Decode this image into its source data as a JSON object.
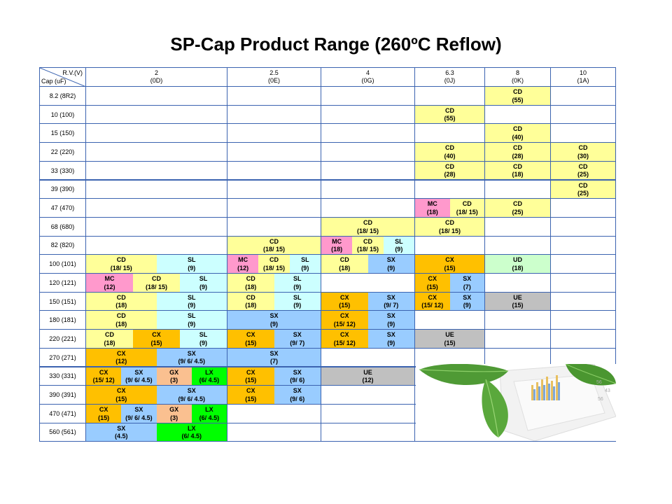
{
  "title": "SP-Cap Product Range (260ºC Reflow)",
  "corner": {
    "rv": "R.V.(V)",
    "cap": "Cap (uF)"
  },
  "voltages": [
    {
      "v": "2",
      "code": "(0D)"
    },
    {
      "v": "2.5",
      "code": "(0E)"
    },
    {
      "v": "4",
      "code": "(0G)"
    },
    {
      "v": "6.3",
      "code": "(0J)"
    },
    {
      "v": "8",
      "code": "(0K)"
    },
    {
      "v": "10",
      "code": "(1A)"
    }
  ],
  "rows": [
    "8.2 (8R2)",
    "10 (100)",
    "15 (150)",
    "22 (220)",
    "33 (330)",
    "39 (390)",
    "47 (470)",
    "68 (680)",
    "82 (820)",
    "100 (101)",
    "120 (121)",
    "150 (151)",
    "180 (181)",
    "220 (221)",
    "270 (271)",
    "330 (331)",
    "390 (391)",
    "470 (471)",
    "560 (561)"
  ],
  "colors": {
    "CD": "#ffff99",
    "SL": "#ccffff",
    "MC": "#ff99cc",
    "CX": "#ffc000",
    "SX": "#99ccff",
    "GX": "#fac090",
    "LX": "#00ff00",
    "UD": "#ccffcc",
    "UE": "#c0c0c0",
    "border": "#3b63b0"
  },
  "cells": [
    [
      [],
      [],
      [],
      [],
      [
        {
          "s": "CD",
          "v": "(55)"
        }
      ],
      []
    ],
    [
      [],
      [],
      [],
      [
        {
          "s": "CD",
          "v": "(55)"
        }
      ],
      [],
      []
    ],
    [
      [],
      [],
      [],
      [],
      [
        {
          "s": "CD",
          "v": "(40)"
        }
      ],
      []
    ],
    [
      [],
      [],
      [],
      [
        {
          "s": "CD",
          "v": "(40)"
        }
      ],
      [
        {
          "s": "CD",
          "v": "(28)"
        }
      ],
      [
        {
          "s": "CD",
          "v": "(30)"
        }
      ]
    ],
    [
      [],
      [],
      [],
      [
        {
          "s": "CD",
          "v": "(28)"
        }
      ],
      [
        {
          "s": "CD",
          "v": "(18)"
        }
      ],
      [
        {
          "s": "CD",
          "v": "(25)"
        }
      ]
    ],
    [
      [],
      [],
      [],
      [],
      [],
      [
        {
          "s": "CD",
          "v": "(25)"
        }
      ]
    ],
    [
      [],
      [],
      [],
      [
        {
          "s": "MC",
          "v": "(18)"
        },
        {
          "s": "CD",
          "v": "(18/ 15)"
        }
      ],
      [
        {
          "s": "CD",
          "v": "(25)"
        }
      ],
      []
    ],
    [
      [],
      [],
      [
        {
          "s": "CD",
          "v": "(18/ 15)"
        }
      ],
      [
        {
          "s": "CD",
          "v": "(18/ 15)"
        }
      ],
      [],
      []
    ],
    [
      [],
      [
        {
          "s": "CD",
          "v": "(18/ 15)"
        }
      ],
      [
        {
          "s": "MC",
          "v": "(18)"
        },
        {
          "s": "CD",
          "v": "(18/ 15)"
        },
        {
          "s": "SL",
          "v": "(9)"
        }
      ],
      [],
      [],
      []
    ],
    [
      [
        {
          "s": "CD",
          "v": "(18/ 15)"
        },
        {
          "s": "SL",
          "v": "(9)"
        }
      ],
      [
        {
          "s": "MC",
          "v": "(12)"
        },
        {
          "s": "CD",
          "v": "(18/ 15)"
        },
        {
          "s": "SL",
          "v": "(9)"
        }
      ],
      [
        {
          "s": "CD",
          "v": "(18)"
        },
        {
          "s": "SX",
          "v": "(9)"
        }
      ],
      [
        {
          "s": "CX",
          "v": "(15)"
        }
      ],
      [
        {
          "s": "UD",
          "v": "(18)"
        }
      ],
      []
    ],
    [
      [
        {
          "s": "MC",
          "v": "(12)"
        },
        {
          "s": "CD",
          "v": "(18/ 15)"
        },
        {
          "s": "SL",
          "v": "(9)"
        }
      ],
      [
        {
          "s": "CD",
          "v": "(18)"
        },
        {
          "s": "SL",
          "v": "(9)"
        }
      ],
      [],
      [
        {
          "s": "CX",
          "v": "(15)"
        },
        {
          "s": "SX",
          "v": "(7)"
        }
      ],
      [],
      []
    ],
    [
      [
        {
          "s": "CD",
          "v": "(18)"
        },
        {
          "s": "SL",
          "v": "(9)"
        }
      ],
      [
        {
          "s": "CD",
          "v": "(18)"
        },
        {
          "s": "SL",
          "v": "(9)"
        }
      ],
      [
        {
          "s": "CX",
          "v": "(15)"
        },
        {
          "s": "SX",
          "v": "(9/ 7)"
        }
      ],
      [
        {
          "s": "CX",
          "v": "(15/ 12)"
        },
        {
          "s": "SX",
          "v": "(9)"
        }
      ],
      [
        {
          "s": "UE",
          "v": "(15)"
        }
      ],
      []
    ],
    [
      [
        {
          "s": "CD",
          "v": "(18)"
        },
        {
          "s": "SL",
          "v": "(9)"
        }
      ],
      [
        {
          "s": "SX",
          "v": "(9)"
        }
      ],
      [
        {
          "s": "CX",
          "v": "(15/ 12)"
        },
        {
          "s": "SX",
          "v": "(9)"
        }
      ],
      [],
      [],
      []
    ],
    [
      [
        {
          "s": "CD",
          "v": "(18)"
        },
        {
          "s": "CX",
          "v": "(15)"
        },
        {
          "s": "SL",
          "v": "(9)"
        }
      ],
      [
        {
          "s": "CX",
          "v": "(15)"
        },
        {
          "s": "SX",
          "v": "(9/ 7)"
        }
      ],
      [
        {
          "s": "CX",
          "v": "(15/ 12)"
        },
        {
          "s": "SX",
          "v": "(9)"
        }
      ],
      [
        {
          "s": "UE",
          "v": "(15)"
        }
      ],
      [],
      []
    ],
    [
      [
        {
          "s": "CX",
          "v": "(12)"
        },
        {
          "s": "SX",
          "v": "(9/ 6/ 4.5)"
        }
      ],
      [
        {
          "s": "SX",
          "v": "(7)"
        }
      ],
      [],
      [],
      [],
      []
    ],
    [
      [
        {
          "s": "CX",
          "v": "(15/ 12)"
        },
        {
          "s": "SX",
          "v": "(9/ 6/ 4.5)"
        },
        {
          "s": "GX",
          "v": "(3)"
        },
        {
          "s": "LX",
          "v": "(6/ 4.5)"
        }
      ],
      [
        {
          "s": "CX",
          "v": "(15)"
        },
        {
          "s": "SX",
          "v": "(9/ 6)"
        }
      ],
      [
        {
          "s": "UE",
          "v": "(12)"
        }
      ],
      [],
      [],
      []
    ],
    [
      [
        {
          "s": "CX",
          "v": "(15)"
        },
        {
          "s": "SX",
          "v": "(9/ 6/ 4.5)"
        }
      ],
      [
        {
          "s": "CX",
          "v": "(15)"
        },
        {
          "s": "SX",
          "v": "(9/ 6)"
        }
      ],
      [],
      [],
      [],
      []
    ],
    [
      [
        {
          "s": "CX",
          "v": "(15)"
        },
        {
          "s": "SX",
          "v": "(9/ 6/ 4.5)"
        },
        {
          "s": "GX",
          "v": "(3)"
        },
        {
          "s": "LX",
          "v": "(6/ 4.5)"
        }
      ],
      [],
      [],
      [],
      [],
      []
    ],
    [
      [
        {
          "s": "SX",
          "v": "(4.5)"
        },
        {
          "s": "LX",
          "v": "(6/ 4.5)"
        }
      ],
      [],
      [],
      [],
      [],
      []
    ]
  ]
}
